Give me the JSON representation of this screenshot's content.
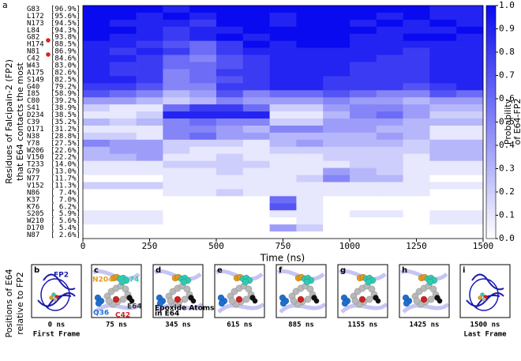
{
  "chart_data": {
    "type": "heatmap",
    "panel": "a",
    "ylabel": [
      "Residues of Falcipain-2 (FP2)",
      "that E64 contacts the most"
    ],
    "xlabel": "Time (ns)",
    "rows": [
      "G83",
      "L172",
      "N173",
      "L84",
      "G82",
      "H174",
      "N81",
      "C42",
      "W43",
      "A175",
      "S149",
      "G40",
      "I85",
      "C80",
      "S41",
      "D234",
      "C39",
      "Q171",
      "N38",
      "Y78",
      "W206",
      "V150",
      "T233",
      "G79",
      "N77",
      "V152",
      "N86",
      "K37",
      "K76",
      "S205",
      "W210",
      "D170",
      "N87"
    ],
    "percent": [
      96.9,
      95.6,
      94.5,
      94.3,
      93.8,
      88.5,
      86.9,
      84.6,
      83.0,
      82.6,
      82.5,
      79.2,
      58.9,
      39.2,
      38.9,
      38.5,
      35.2,
      31.2,
      28.8,
      27.5,
      22.6,
      22.2,
      14.0,
      13.0,
      11.7,
      11.3,
      7.4,
      7.0,
      6.2,
      5.9,
      5.6,
      5.4,
      2.6
    ],
    "percent_labels": [
      "[96.9%]",
      "[95.6%]",
      "[94.5%]",
      "[94.3%]",
      "[93.8%]",
      "[88.5%]",
      "[86.9%]",
      "[84.6%]",
      "[83.0%]",
      "[82.6%]",
      "[82.5%]",
      "[79.2%]",
      "[58.9%]",
      "[39.2%]",
      "[38.9%]",
      "[38.5%]",
      "[35.2%]",
      "[31.2%]",
      "[28.8%]",
      "[27.5%]",
      "[22.6%]",
      "[22.2%]",
      "[14.0%]",
      "[13.0%]",
      "[11.7%]",
      "[11.3%]",
      "[ 7.4%]",
      "[ 7.0%]",
      "[ 6.2%]",
      "[ 5.9%]",
      "[ 5.6%]",
      "[ 5.4%]",
      "[ 2.6%]"
    ],
    "bins": [
      0,
      100,
      200,
      300,
      400,
      500,
      600,
      700,
      800,
      900,
      1000,
      1100,
      1200,
      1300,
      1400,
      1500
    ],
    "values": [
      [
        1,
        1,
        1,
        0.9,
        1,
        1,
        1,
        1,
        1,
        1,
        1,
        1,
        1,
        0.9,
        0.9
      ],
      [
        1,
        1,
        0.9,
        1,
        0.9,
        1,
        1,
        0.9,
        1,
        1,
        1,
        0.9,
        1,
        0.9,
        0.9
      ],
      [
        1,
        0.9,
        0.9,
        0.9,
        0.8,
        1,
        1,
        0.9,
        1,
        1,
        0.9,
        1,
        0.9,
        1,
        0.9
      ],
      [
        1,
        1,
        0.9,
        0.8,
        0.9,
        0.9,
        1,
        1,
        1,
        1,
        1,
        0.9,
        0.9,
        0.9,
        1
      ],
      [
        1,
        0.9,
        0.9,
        0.8,
        0.9,
        1,
        0.9,
        1,
        1,
        1,
        0.9,
        0.9,
        1,
        1,
        0.9
      ],
      [
        0.9,
        0.9,
        0.8,
        0.7,
        0.6,
        0.8,
        1,
        0.9,
        1,
        1,
        0.9,
        0.9,
        0.9,
        0.9,
        0.9
      ],
      [
        0.9,
        0.8,
        0.9,
        0.8,
        0.6,
        0.8,
        0.9,
        0.9,
        0.9,
        0.9,
        0.9,
        0.9,
        0.8,
        0.9,
        0.9
      ],
      [
        0.9,
        0.9,
        0.8,
        0.6,
        0.5,
        0.7,
        0.8,
        0.9,
        0.9,
        0.9,
        0.9,
        0.8,
        0.8,
        0.9,
        0.9
      ],
      [
        0.9,
        0.8,
        0.8,
        0.6,
        0.6,
        0.7,
        0.8,
        0.9,
        0.9,
        0.9,
        0.8,
        0.8,
        0.8,
        0.9,
        0.9
      ],
      [
        0.9,
        0.8,
        0.8,
        0.5,
        0.6,
        0.8,
        0.8,
        0.9,
        0.9,
        0.9,
        0.8,
        0.8,
        0.8,
        0.9,
        0.9
      ],
      [
        0.9,
        0.9,
        0.8,
        0.5,
        0.6,
        0.7,
        0.8,
        0.9,
        0.9,
        0.8,
        0.8,
        0.8,
        0.8,
        0.9,
        0.9
      ],
      [
        0.8,
        0.8,
        0.7,
        0.5,
        0.5,
        0.8,
        0.8,
        0.9,
        0.9,
        0.8,
        0.8,
        0.8,
        0.7,
        0.8,
        0.9
      ],
      [
        0.7,
        0.6,
        0.5,
        0.3,
        0.4,
        0.7,
        0.5,
        0.6,
        0.6,
        0.7,
        0.6,
        0.5,
        0.5,
        0.7,
        0.6
      ],
      [
        0.4,
        0.4,
        0.3,
        0.2,
        0.3,
        0.5,
        0.4,
        0.4,
        0.4,
        0.5,
        0.4,
        0.4,
        0.3,
        0.4,
        0.4
      ],
      [
        0.2,
        0.1,
        0.1,
        0.6,
        0.8,
        0.8,
        0.6,
        0.2,
        0.2,
        0.4,
        0.5,
        0.5,
        0.4,
        0.3,
        0.3
      ],
      [
        0.1,
        0.1,
        0.2,
        0.9,
        0.9,
        0.9,
        0.9,
        0.1,
        0.1,
        0.3,
        0.5,
        0.6,
        0.4,
        0.2,
        0.2
      ],
      [
        0.3,
        0.2,
        0.3,
        0.5,
        0.6,
        0.5,
        0.5,
        0.2,
        0.2,
        0.4,
        0.4,
        0.4,
        0.3,
        0.3,
        0.3
      ],
      [
        0.1,
        0.1,
        0.1,
        0.5,
        0.5,
        0.4,
        0.3,
        0.5,
        0.5,
        0.4,
        0.4,
        0.3,
        0.3,
        0.1,
        0.1
      ],
      [
        0.2,
        0.2,
        0.1,
        0.5,
        0.6,
        0.4,
        0.4,
        0.3,
        0.3,
        0.3,
        0.3,
        0.4,
        0.3,
        0.1,
        0.1
      ],
      [
        0.5,
        0.4,
        0.4,
        0.2,
        0.2,
        0.2,
        0.1,
        0.3,
        0.4,
        0.3,
        0.3,
        0.3,
        0.2,
        0.3,
        0.3
      ],
      [
        0.3,
        0.4,
        0.4,
        0.2,
        0.1,
        0.1,
        0.1,
        0.2,
        0.2,
        0.2,
        0.2,
        0.2,
        0.2,
        0.3,
        0.3
      ],
      [
        0.3,
        0.3,
        0.4,
        0.1,
        0.1,
        0.2,
        0.1,
        0.1,
        0.1,
        0.2,
        0.2,
        0.2,
        0.1,
        0.3,
        0.3
      ],
      [
        0.1,
        0.1,
        0.1,
        0.2,
        0.2,
        0.2,
        0.2,
        0.1,
        0.1,
        0.1,
        0.2,
        0.2,
        0.1,
        0.1,
        0.1
      ],
      [
        0.1,
        0.1,
        0.1,
        0.1,
        0.1,
        0.2,
        0.1,
        0.1,
        0.1,
        0.4,
        0.3,
        0.2,
        0.1,
        0.1,
        0.1
      ],
      [
        0,
        0,
        0,
        0.1,
        0.1,
        0.1,
        0.1,
        0.1,
        0.2,
        0.5,
        0.3,
        0.3,
        0.1,
        0,
        0
      ],
      [
        0.2,
        0.2,
        0.2,
        0.1,
        0.1,
        0.1,
        0.1,
        0.1,
        0.1,
        0.1,
        0.1,
        0.1,
        0.1,
        0.1,
        0.1
      ],
      [
        0,
        0,
        0,
        0.1,
        0.1,
        0.2,
        0.1,
        0.1,
        0.1,
        0.1,
        0.1,
        0.1,
        0.1,
        0,
        0
      ],
      [
        0,
        0,
        0,
        0,
        0,
        0,
        0,
        0.6,
        0.1,
        0,
        0,
        0,
        0,
        0,
        0
      ],
      [
        0,
        0,
        0,
        0,
        0,
        0,
        0,
        0.7,
        0.1,
        0,
        0,
        0,
        0,
        0,
        0
      ],
      [
        0.1,
        0.1,
        0.1,
        0,
        0,
        0,
        0,
        0.1,
        0.1,
        0,
        0.1,
        0.1,
        0,
        0.1,
        0.1
      ],
      [
        0.1,
        0.1,
        0.1,
        0,
        0,
        0,
        0,
        0,
        0.1,
        0,
        0,
        0,
        0,
        0.1,
        0.1
      ],
      [
        0,
        0,
        0,
        0,
        0,
        0,
        0,
        0.4,
        0.2,
        0,
        0,
        0,
        0,
        0,
        0
      ],
      [
        0,
        0,
        0,
        0,
        0,
        0,
        0,
        0,
        0,
        0,
        0,
        0,
        0,
        0,
        0
      ]
    ],
    "xlim": [
      0,
      1500
    ],
    "xticks": [
      0,
      250,
      500,
      750,
      1000,
      1250,
      1500
    ],
    "colorbar": {
      "label": [
        "Probability",
        "of E64-FP2",
        "Residue Contact"
      ],
      "low_color": "#ffffff",
      "high_color": "#0a0af0",
      "lim": [
        0,
        1
      ],
      "ticks": [
        {
          "value": 0,
          "label": "0.0"
        },
        {
          "value": 0.1,
          "label": "0.1"
        },
        {
          "value": 0.2,
          "label": "0.2"
        },
        {
          "value": 0.3,
          "label": "0.3"
        },
        {
          "value": 0.4,
          "label": "0.4"
        },
        {
          "value": 0.5,
          "label": "0.5"
        },
        {
          "value": 0.6,
          "label": "0.6"
        },
        {
          "value": 0.7,
          "label": "0.7"
        },
        {
          "value": 0.8,
          "label": "0.8"
        },
        {
          "value": 0.9,
          "label": "0.9"
        },
        {
          "value": 1,
          "label": "1.0"
        }
      ]
    }
  },
  "bottom": {
    "ylabel": [
      "Positions of E64",
      "relative to FP2"
    ],
    "panels": [
      {
        "letter": "b",
        "time": "0 ns",
        "caption": "First Frame",
        "notes": [
          "FP2"
        ]
      },
      {
        "letter": "c",
        "time": "75 ns",
        "notes": [
          "N204",
          "H174",
          "Q36",
          "C42",
          "E64"
        ]
      },
      {
        "letter": "d",
        "time": "345 ns",
        "notes": [
          "Epoxide Atoms",
          "in E64"
        ]
      },
      {
        "letter": "e",
        "time": "615 ns"
      },
      {
        "letter": "f",
        "time": "885 ns"
      },
      {
        "letter": "g",
        "time": "1155 ns"
      },
      {
        "letter": "h",
        "time": "1425 ns"
      },
      {
        "letter": "i",
        "time": "1500 ns",
        "caption": "Last Frame"
      }
    ]
  }
}
